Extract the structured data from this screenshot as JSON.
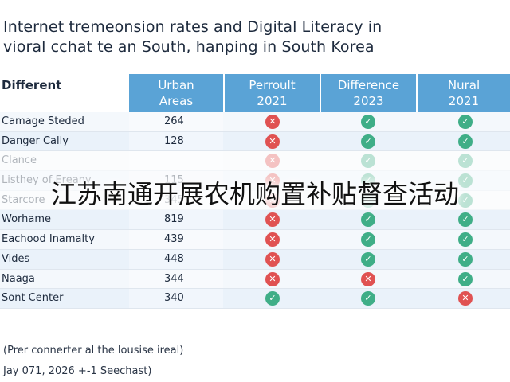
{
  "title_lines": [
    "Internet tremeonsion rates and Digital Literacy in",
    "vioral cchat te an South, hanping in South Korea"
  ],
  "table": {
    "row_header": "Different",
    "columns": [
      {
        "line1": "Urban",
        "line2": "Areas"
      },
      {
        "line1": "Perroult",
        "line2": "2021"
      },
      {
        "line1": "Difference",
        "line2": "2023"
      },
      {
        "line1": "Nural",
        "line2": "2021"
      }
    ],
    "rows": [
      {
        "name": "Camage Steded",
        "value": "264",
        "status": [
          "x",
          "ok",
          "ok"
        ],
        "faded": false
      },
      {
        "name": "Danger Cally",
        "value": "128",
        "status": [
          "x",
          "ok",
          "ok"
        ],
        "faded": false
      },
      {
        "name": "Clance",
        "value": "",
        "status": [
          "x",
          "ok",
          "ok"
        ],
        "faded": true
      },
      {
        "name": "Listhey of Ereany",
        "value": "115",
        "status": [
          "x",
          "ok",
          "ok"
        ],
        "faded": true
      },
      {
        "name": "Starcore",
        "value": "345",
        "status": [
          "x",
          "ok",
          "ok"
        ],
        "faded": true
      },
      {
        "name": "Worhame",
        "value": "819",
        "status": [
          "x",
          "ok",
          "ok"
        ],
        "faded": false
      },
      {
        "name": "Eachood Inamalty",
        "value": "439",
        "status": [
          "x",
          "ok",
          "ok"
        ],
        "faded": false
      },
      {
        "name": "Vides",
        "value": "448",
        "status": [
          "x",
          "ok",
          "ok"
        ],
        "faded": false
      },
      {
        "name": "Naaga",
        "value": "344",
        "status": [
          "x",
          "x",
          "ok"
        ],
        "faded": false
      },
      {
        "name": "Sont Center",
        "value": "340",
        "status": [
          "ok",
          "ok",
          "x"
        ],
        "faded": false
      }
    ]
  },
  "notes": [
    "(Prer connerter al the lousise ireal)",
    "Jay 071, 2026 +-1 Seechast)"
  ],
  "overlay_text": "江苏南通开展农机购置补贴督查活动",
  "colors": {
    "header": "#5aa3d6",
    "ok": "#3fae87",
    "x": "#e05252"
  }
}
